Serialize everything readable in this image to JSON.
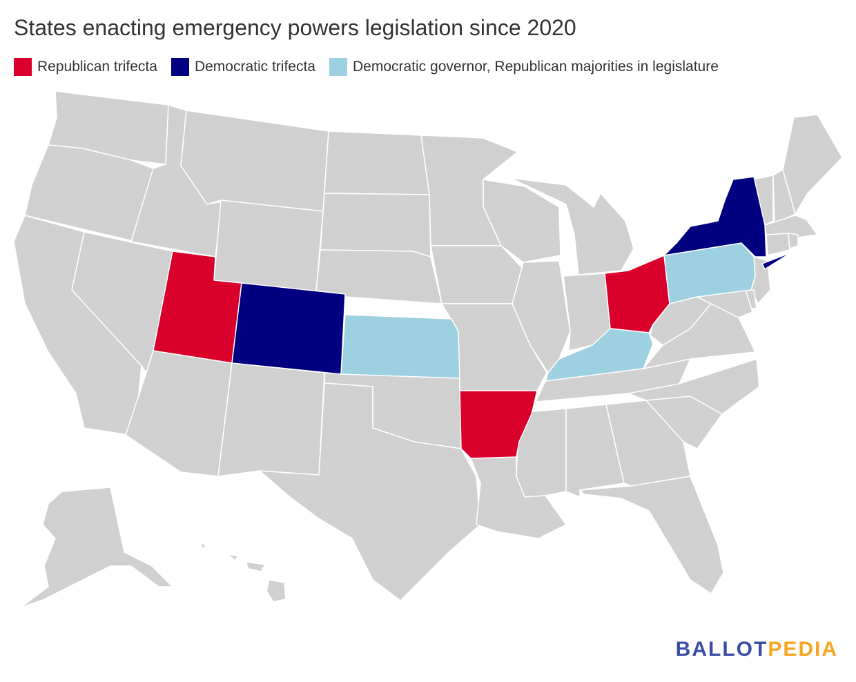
{
  "title": "States enacting emergency powers legislation since 2020",
  "legend": [
    {
      "label": "Republican trifecta",
      "color": "#d9002b"
    },
    {
      "label": "Democratic trifecta",
      "color": "#010080"
    },
    {
      "label": "Democratic governor, Republican majorities in legislature",
      "color": "#9dd0e1"
    }
  ],
  "colors": {
    "default_state": "#d0d0d0",
    "border": "#ffffff",
    "republican_trifecta": "#d9002b",
    "democratic_trifecta": "#010080",
    "dem_gov_rep_legislature": "#9dd0e1"
  },
  "highlighted_states": {
    "republican_trifecta": [
      "Utah",
      "Ohio",
      "Arkansas"
    ],
    "democratic_trifecta": [
      "Colorado",
      "New York"
    ],
    "dem_gov_rep_legislature": [
      "Kansas",
      "Pennsylvania",
      "Kentucky"
    ]
  },
  "brand": {
    "part1": "BALLOT",
    "part2": "PEDIA"
  }
}
